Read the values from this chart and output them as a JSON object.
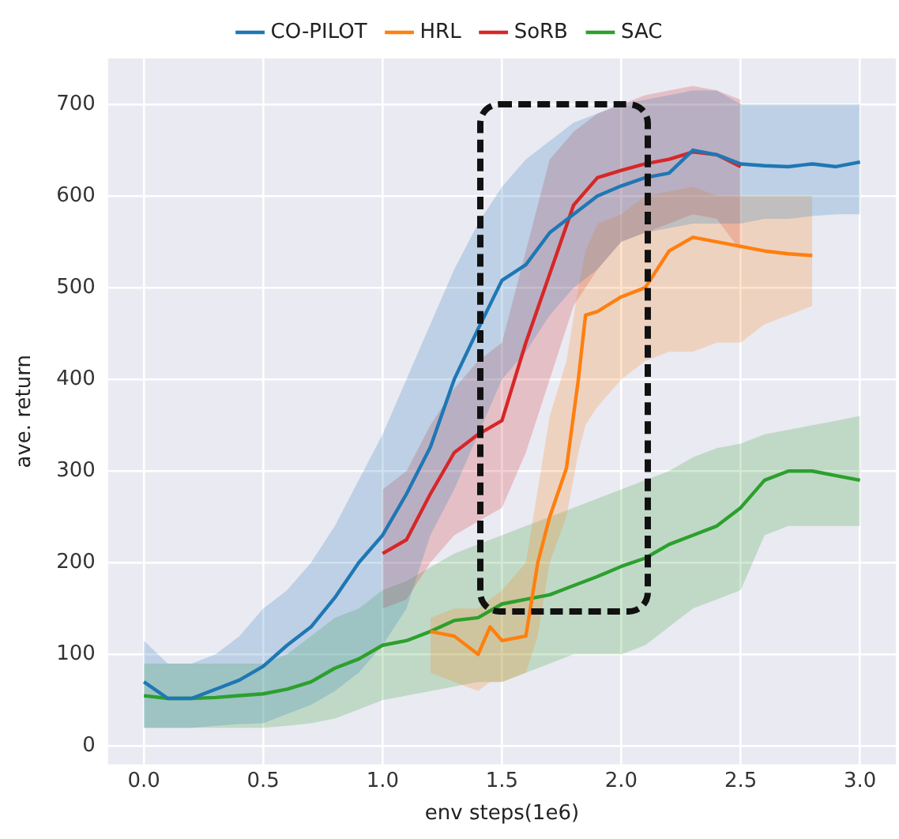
{
  "chart_data": {
    "type": "line",
    "xlabel": "env steps(1e6)",
    "ylabel": "ave. return",
    "xlim": [
      -0.15,
      3.15
    ],
    "ylim": [
      -20,
      750
    ],
    "xticks": [
      {
        "value": 0,
        "label": "0.0"
      },
      {
        "value": 0.5,
        "label": "0.5"
      },
      {
        "value": 1,
        "label": "1.0"
      },
      {
        "value": 1.5,
        "label": "1.5"
      },
      {
        "value": 2,
        "label": "2.0"
      },
      {
        "value": 2.5,
        "label": "2.5"
      },
      {
        "value": 3,
        "label": "3.0"
      }
    ],
    "yticks": [
      0,
      100,
      200,
      300,
      400,
      500,
      600,
      700
    ],
    "grid": true,
    "legend": "top",
    "marker": "none",
    "line_style": "solid",
    "series": [
      {
        "name": "CO-PILOT",
        "color": "#1f77b4",
        "x": [
          0,
          0.1,
          0.2,
          0.3,
          0.4,
          0.5,
          0.6,
          0.7,
          0.8,
          0.9,
          1.0,
          1.1,
          1.2,
          1.3,
          1.4,
          1.5,
          1.6,
          1.7,
          1.8,
          1.9,
          2.0,
          2.1,
          2.2,
          2.3,
          2.4,
          2.5,
          2.6,
          2.7,
          2.8,
          2.9,
          3.0
        ],
        "values": [
          70,
          52,
          52,
          62,
          72,
          87,
          110,
          130,
          162,
          200,
          230,
          275,
          326,
          400,
          455,
          508,
          525,
          560,
          580,
          600,
          611,
          620,
          625,
          650,
          645,
          635,
          633,
          632,
          635,
          632,
          637
        ],
        "lower": [
          20,
          20,
          20,
          22,
          24,
          25,
          35,
          45,
          60,
          80,
          110,
          150,
          230,
          280,
          340,
          400,
          430,
          470,
          500,
          520,
          550,
          560,
          565,
          570,
          570,
          570,
          575,
          575,
          578,
          580,
          580
        ],
        "upper": [
          115,
          90,
          90,
          100,
          120,
          150,
          170,
          200,
          240,
          290,
          340,
          400,
          460,
          520,
          570,
          610,
          640,
          660,
          680,
          690,
          700,
          705,
          710,
          715,
          715,
          700,
          700,
          700,
          700,
          700,
          700
        ]
      },
      {
        "name": "HRL",
        "color": "#ff7f0e",
        "x": [
          1.2,
          1.3,
          1.4,
          1.45,
          1.5,
          1.6,
          1.65,
          1.7,
          1.77,
          1.82,
          1.85,
          1.9,
          2.0,
          2.1,
          2.2,
          2.3,
          2.4,
          2.5,
          2.6,
          2.7,
          2.8
        ],
        "values": [
          125,
          120,
          100,
          130,
          115,
          120,
          200,
          250,
          303,
          400,
          470,
          474,
          490,
          500,
          540,
          555,
          550,
          545,
          540,
          537,
          535
        ],
        "lower": [
          80,
          70,
          60,
          70,
          70,
          80,
          120,
          200,
          250,
          320,
          350,
          370,
          400,
          420,
          430,
          430,
          440,
          440,
          460,
          470,
          480
        ],
        "upper": [
          140,
          150,
          150,
          160,
          170,
          200,
          280,
          360,
          420,
          500,
          540,
          570,
          580,
          600,
          605,
          610,
          600,
          600,
          600,
          600,
          600
        ]
      },
      {
        "name": "SoRB",
        "color": "#d62728",
        "x": [
          1.0,
          1.1,
          1.2,
          1.3,
          1.4,
          1.5,
          1.6,
          1.7,
          1.8,
          1.9,
          2.0,
          2.1,
          2.2,
          2.3,
          2.4,
          2.5
        ],
        "values": [
          210,
          225,
          275,
          320,
          340,
          355,
          440,
          515,
          590,
          620,
          628,
          635,
          640,
          648,
          645,
          632
        ],
        "lower": [
          150,
          160,
          200,
          230,
          245,
          260,
          320,
          400,
          480,
          520,
          550,
          560,
          570,
          580,
          575,
          540
        ],
        "upper": [
          280,
          300,
          350,
          390,
          420,
          440,
          540,
          640,
          670,
          690,
          700,
          710,
          715,
          720,
          715,
          705
        ]
      },
      {
        "name": "SAC",
        "color": "#2ca02c",
        "x": [
          0,
          0.1,
          0.2,
          0.3,
          0.4,
          0.5,
          0.6,
          0.7,
          0.8,
          0.9,
          1.0,
          1.1,
          1.2,
          1.3,
          1.4,
          1.5,
          1.6,
          1.7,
          1.8,
          1.9,
          2.0,
          2.1,
          2.2,
          2.3,
          2.4,
          2.5,
          2.6,
          2.7,
          2.8,
          2.9,
          3.0
        ],
        "values": [
          55,
          52,
          52,
          53,
          55,
          57,
          62,
          70,
          85,
          95,
          110,
          115,
          125,
          137,
          140,
          155,
          160,
          165,
          175,
          185,
          196,
          205,
          220,
          230,
          240,
          260,
          290,
          300,
          300,
          295,
          290
        ],
        "lower": [
          20,
          20,
          20,
          20,
          20,
          20,
          22,
          25,
          30,
          40,
          50,
          55,
          60,
          65,
          70,
          70,
          80,
          90,
          100,
          100,
          100,
          110,
          130,
          150,
          160,
          170,
          230,
          240,
          240,
          240,
          240
        ],
        "upper": [
          90,
          90,
          90,
          90,
          90,
          90,
          100,
          120,
          140,
          150,
          170,
          180,
          195,
          210,
          220,
          230,
          240,
          250,
          260,
          270,
          280,
          290,
          300,
          315,
          325,
          330,
          340,
          345,
          350,
          355,
          360
        ]
      }
    ]
  }
}
